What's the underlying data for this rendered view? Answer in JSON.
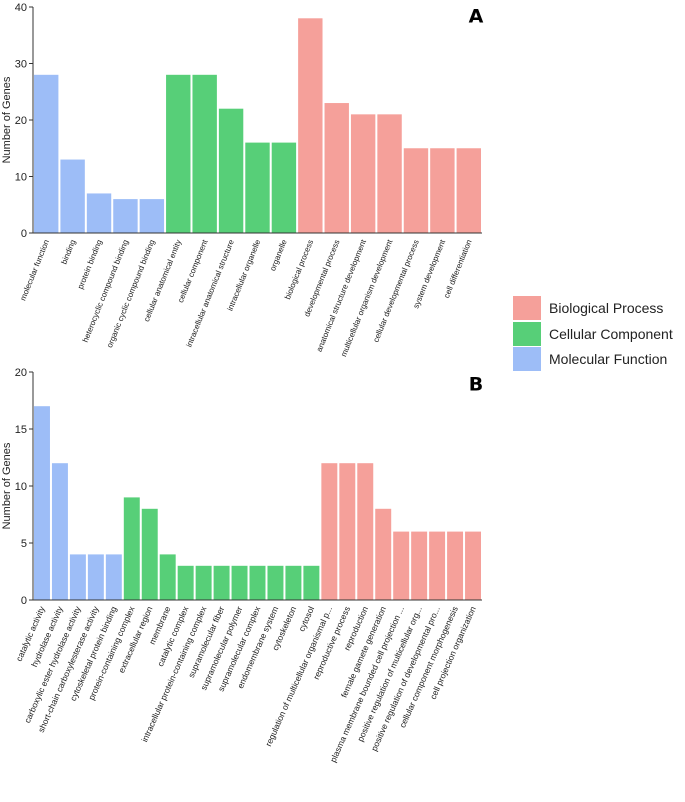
{
  "colors": {
    "molecular_function": "#9DBDF7",
    "cellular_component": "#57CF78",
    "biological_process": "#F5A09A"
  },
  "legend": {
    "items": [
      {
        "label": "Biological Process",
        "color": "#F5A09A"
      },
      {
        "label": "Cellular Component",
        "color": "#57CF78"
      },
      {
        "label": "Molecular Function",
        "color": "#9DBDF7"
      }
    ]
  },
  "chart_data": [
    {
      "type": "bar",
      "panel_label": "A",
      "ylabel": "Number of Genes",
      "ylim": [
        0,
        40
      ],
      "yticks": [
        0,
        10,
        20,
        30,
        40
      ],
      "grid": false,
      "categories": [
        "molecular  function",
        "binding",
        "protein binding",
        "heterocyclic compound binding",
        "organic cyclic compound binding",
        "cellular anatomical entity",
        "cellular  component",
        "intracellular anatomical structure",
        "intracellular organelle",
        "organelle",
        "biological  process",
        "developmental process",
        "anatomical structure development",
        "multicellular organism development",
        "cellular developmental process",
        "system development",
        "cell differentiation"
      ],
      "values": [
        28,
        13,
        7,
        6,
        6,
        28,
        28,
        22,
        16,
        16,
        38,
        23,
        21,
        21,
        15,
        15,
        15
      ],
      "groups": [
        "molecular_function",
        "molecular_function",
        "molecular_function",
        "molecular_function",
        "molecular_function",
        "cellular_component",
        "cellular_component",
        "cellular_component",
        "cellular_component",
        "cellular_component",
        "biological_process",
        "biological_process",
        "biological_process",
        "biological_process",
        "biological_process",
        "biological_process",
        "biological_process"
      ]
    },
    {
      "type": "bar",
      "panel_label": "B",
      "ylabel": "Number of Genes",
      "ylim": [
        0,
        20
      ],
      "yticks": [
        0,
        5,
        10,
        15,
        20
      ],
      "grid": false,
      "categories": [
        "catalytic activity",
        "hydrolase activity",
        "carboxylic ester hydrolase activity",
        "short-chain carboxylesterase activity",
        "cytoskeletal protein binding",
        "protein-containing complex",
        "extracellular region",
        "membrane",
        "catalytic complex",
        "intracellular protein-containing complex",
        "supramolecular fiber",
        "supramolecular polymer",
        "supramolecular complex",
        "endomembrane system",
        "cytoskeleton",
        "cytosol",
        "regulation of multicellular organismal p...",
        "reproductive process",
        "reproduction",
        "female gamete generation",
        "plasma membrane bounded cell projection ...",
        "positive regulation of multicellular org...",
        "positive regulation of developmental pro...",
        "cellular component morphogenesis",
        "cell projection organization"
      ],
      "values": [
        17,
        12,
        4,
        4,
        4,
        9,
        8,
        4,
        3,
        3,
        3,
        3,
        3,
        3,
        3,
        3,
        12,
        12,
        12,
        8,
        6,
        6,
        6,
        6,
        6
      ],
      "groups": [
        "molecular_function",
        "molecular_function",
        "molecular_function",
        "molecular_function",
        "molecular_function",
        "cellular_component",
        "cellular_component",
        "cellular_component",
        "cellular_component",
        "cellular_component",
        "cellular_component",
        "cellular_component",
        "cellular_component",
        "cellular_component",
        "cellular_component",
        "cellular_component",
        "biological_process",
        "biological_process",
        "biological_process",
        "biological_process",
        "biological_process",
        "biological_process",
        "biological_process",
        "biological_process",
        "biological_process"
      ]
    }
  ]
}
